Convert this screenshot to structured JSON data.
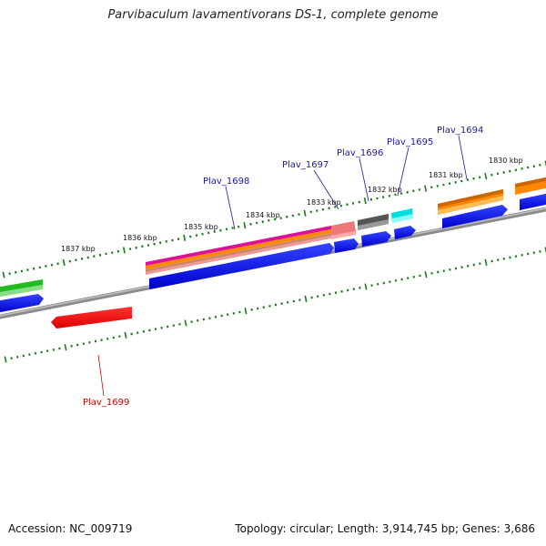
{
  "title": "Parvibaculum lavamentivorans DS-1, complete genome",
  "footer": {
    "accession": "Accession: NC_009719",
    "topology": "Topology: circular; Length: 3,914,745 bp; Genes: 3,686"
  },
  "kbp_labels": [
    "1837 kbp",
    "1836 kbp",
    "1835 kbp",
    "1834 kbp",
    "1833 kbp",
    "1832 kbp",
    "1831 kbp",
    "1830 kbp"
  ],
  "gene_labels": {
    "plav_1694": "Plav_1694",
    "plav_1695": "Plav_1695",
    "plav_1696": "Plav_1696",
    "plav_1697": "Plav_1697",
    "plav_1698": "Plav_1698",
    "plav_1699": "Plav_1699"
  },
  "colors": {
    "backbone": "#7a7a7a",
    "cds_forward": "#0000ee",
    "cds_reverse": "#ee0000",
    "tick": "#1a7a1a",
    "label_forward": "#1a1aaa",
    "label_reverse": "#cc0000",
    "orange": "#ff8800",
    "magenta": "#dd1199",
    "green": "#22bb22",
    "cyan": "#00dddd",
    "gray_gene": "#555555",
    "salmon": "#ee7777"
  }
}
